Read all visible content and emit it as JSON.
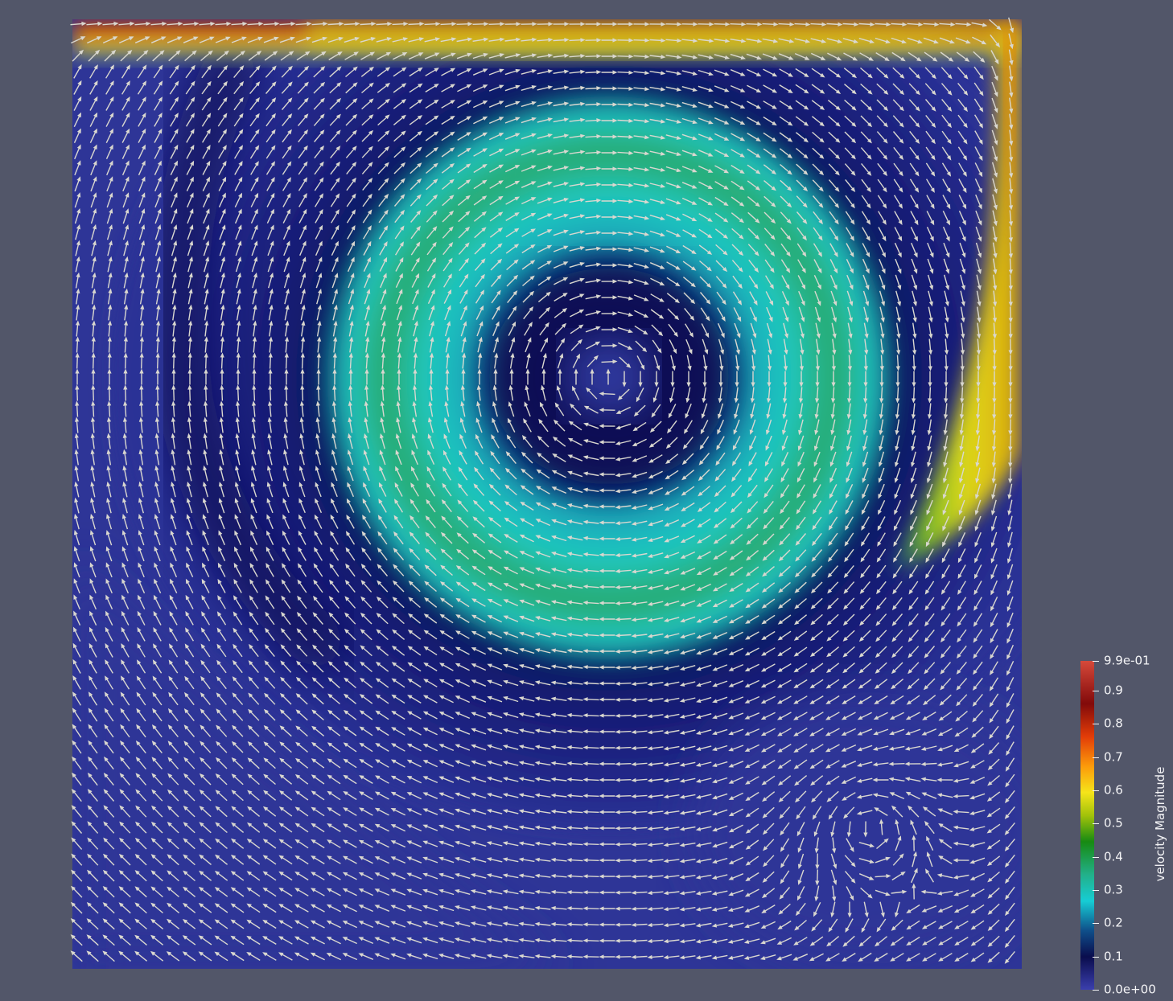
{
  "scene": {
    "background": "#525669",
    "field": "velocity Magnitude",
    "glyph_color": "#d9d7cf"
  },
  "legend": {
    "title": "velocity Magnitude",
    "labels": [
      {
        "text": "9.9e-01",
        "value": 0.99
      },
      {
        "text": "0.9",
        "value": 0.9
      },
      {
        "text": "0.8",
        "value": 0.8
      },
      {
        "text": "0.7",
        "value": 0.7
      },
      {
        "text": "0.6",
        "value": 0.6
      },
      {
        "text": "0.5",
        "value": 0.5
      },
      {
        "text": "0.4",
        "value": 0.4
      },
      {
        "text": "0.3",
        "value": 0.3
      },
      {
        "text": "0.2",
        "value": 0.2
      },
      {
        "text": "0.1",
        "value": 0.1
      },
      {
        "text": "0.0e+00",
        "value": 0.0
      }
    ],
    "range": [
      0.0,
      0.99
    ]
  }
}
